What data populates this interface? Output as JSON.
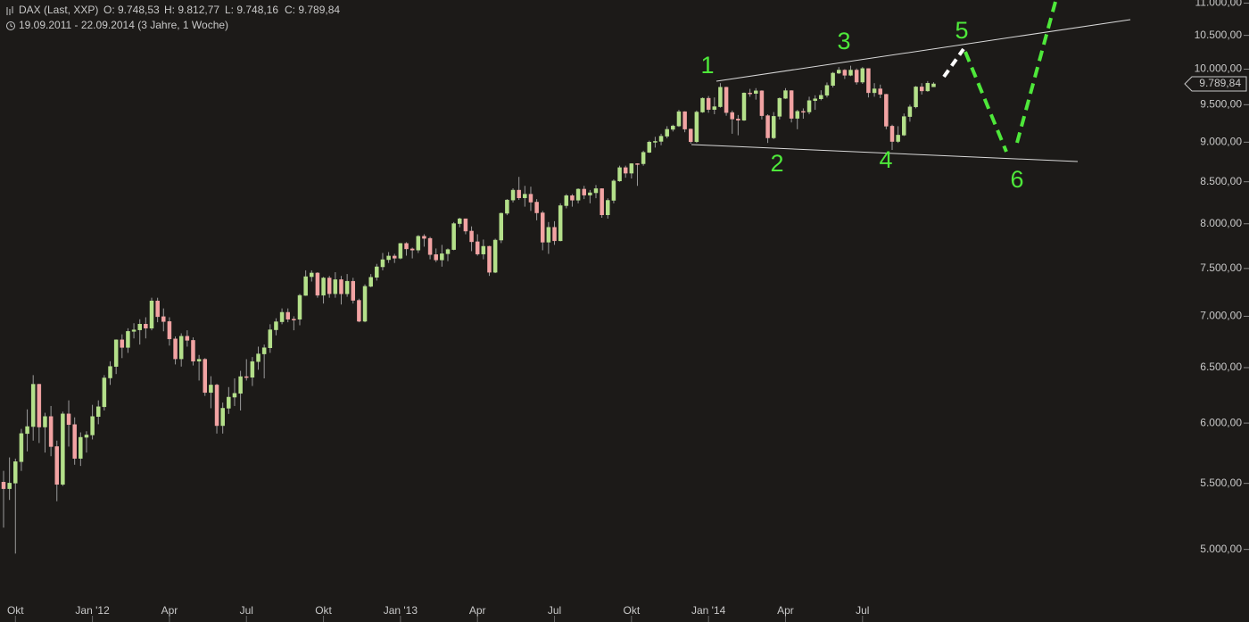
{
  "chart_data": {
    "type": "candlestick",
    "title": "DAX (Last, XXP)",
    "ohlc_labels": [
      "O: 9.748,53",
      "H: 9.812,77",
      "L: 9.748,16",
      "C: 9.789,84"
    ],
    "subtitle": "19.09.2011 - 22.09.2014 (3 Jahre, 1 Woche)",
    "log_scale": true,
    "up_color": "#b4e08a",
    "down_color": "#f2a3a3",
    "wick_color": "#9a9a9a",
    "ylim": [
      4650,
      11050
    ],
    "yticks": [
      {
        "value": 5000,
        "label": "5.000,00"
      },
      {
        "value": 5500,
        "label": "5.500,00"
      },
      {
        "value": 6000,
        "label": "6.000,00"
      },
      {
        "value": 6500,
        "label": "6.500,00"
      },
      {
        "value": 7000,
        "label": "7.000,00"
      },
      {
        "value": 7500,
        "label": "7.500,00"
      },
      {
        "value": 8000,
        "label": "8.000,00"
      },
      {
        "value": 8500,
        "label": "8.500,00"
      },
      {
        "value": 9000,
        "label": "9.000,00"
      },
      {
        "value": 9500,
        "label": "9.500,00"
      },
      {
        "value": 10000,
        "label": "10.000,00"
      },
      {
        "value": 10500,
        "label": "10.500,00"
      },
      {
        "value": 11000,
        "label": "11.000,00"
      }
    ],
    "last_price": {
      "value": 9789.84,
      "label": "9.789,84"
    },
    "annotations": [
      "1",
      "2",
      "3",
      "4",
      "5",
      "6"
    ],
    "categories": [
      null,
      null,
      "Okt",
      null,
      null,
      null,
      null,
      null,
      null,
      null,
      null,
      null,
      null,
      null,
      null,
      "Jan '12",
      null,
      null,
      null,
      null,
      null,
      null,
      null,
      null,
      null,
      null,
      null,
      null,
      "Apr",
      null,
      null,
      null,
      null,
      null,
      null,
      null,
      null,
      null,
      null,
      null,
      null,
      "Jul",
      null,
      null,
      null,
      null,
      null,
      null,
      null,
      null,
      null,
      null,
      null,
      null,
      "Okt",
      null,
      null,
      null,
      null,
      null,
      null,
      null,
      null,
      null,
      null,
      null,
      null,
      "Jan '13",
      null,
      null,
      null,
      null,
      null,
      null,
      null,
      null,
      null,
      null,
      null,
      null,
      "Apr",
      null,
      null,
      null,
      null,
      null,
      null,
      null,
      null,
      null,
      null,
      null,
      null,
      "Jul",
      null,
      null,
      null,
      null,
      null,
      null,
      null,
      null,
      null,
      null,
      null,
      null,
      "Okt",
      null,
      null,
      null,
      null,
      null,
      null,
      null,
      null,
      null,
      null,
      null,
      null,
      "Jan '14",
      null,
      null,
      null,
      null,
      null,
      null,
      null,
      null,
      null,
      null,
      null,
      null,
      "Apr",
      null,
      null,
      null,
      null,
      null,
      null,
      null,
      null,
      null,
      null,
      null,
      null,
      "Jul",
      null,
      null,
      null,
      null,
      null,
      null,
      null,
      null,
      null,
      null,
      null,
      null
    ],
    "open": [
      5510,
      5458,
      5502,
      5675,
      5910,
      5970,
      6346,
      5966,
      6057,
      5800,
      5492,
      6080,
      5987,
      5702,
      5878,
      5898,
      6057,
      6143,
      6404,
      6511,
      6766,
      6692,
      6849,
      6864,
      6921,
      6881,
      7157,
      6996,
      6947,
      6775,
      6583,
      6801,
      6761,
      6561,
      6579,
      6271,
      6339,
      5978,
      6130,
      6229,
      6263,
      6416,
      6410,
      6557,
      6630,
      6689,
      6865,
      6945,
      7040,
      6971,
      6970,
      7214,
      7412,
      7451,
      7216,
      7398,
      7232,
      7380,
      7231,
      7363,
      7163,
      6950,
      7309,
      7405,
      7518,
      7596,
      7636,
      7612,
      7776,
      7715,
      7702,
      7857,
      7833,
      7652,
      7593,
      7661,
      7708,
      8002,
      8058,
      7916,
      7795,
      7658,
      7744,
      7459,
      7814,
      8122,
      8279,
      8398,
      8305,
      8349,
      8254,
      8127,
      7790,
      7959,
      7806,
      8212,
      8331,
      8277,
      8410,
      8338,
      8366,
      8416,
      8104,
      8275,
      8510,
      8675,
      8606,
      8725,
      8724,
      8869,
      9001,
      9010,
      9078,
      9168,
      9213,
      9405,
      9172,
      9006,
      9400,
      9589,
      9435,
      9473,
      9743,
      9393,
      9306,
      9290,
      9662,
      9656,
      9692,
      9351,
      9056,
      9342,
      9588,
      9695,
      9315,
      9409,
      9401,
      9556,
      9581,
      9630,
      9768,
      9943,
      9987,
      9912,
      9987,
      9815,
      10009,
      9666,
      9720,
      9644,
      9210,
      9009,
      9092,
      9339,
      9470,
      9747,
      9691,
      9748.53
    ],
    "high": [
      5600,
      5710,
      5700,
      5950,
      6120,
      6430,
      6350,
      6090,
      6150,
      5850,
      6100,
      6200,
      6050,
      5920,
      5930,
      6160,
      6200,
      6430,
      6560,
      6770,
      6820,
      6880,
      6930,
      6970,
      6990,
      7190,
      7190,
      7080,
      6990,
      6800,
      6830,
      6860,
      6790,
      6620,
      6590,
      6420,
      6350,
      6180,
      6320,
      6400,
      6470,
      6580,
      6600,
      6700,
      6720,
      6920,
      6980,
      7080,
      7080,
      7000,
      7230,
      7480,
      7480,
      7460,
      7410,
      7420,
      7460,
      7420,
      7440,
      7400,
      7180,
      7330,
      7440,
      7550,
      7670,
      7680,
      7660,
      7780,
      7790,
      7730,
      7870,
      7880,
      7850,
      7720,
      7760,
      7720,
      8020,
      8070,
      8060,
      7970,
      7880,
      7820,
      7750,
      7830,
      8130,
      8290,
      8420,
      8560,
      8450,
      8440,
      8290,
      8150,
      8020,
      8030,
      8240,
      8350,
      8350,
      8420,
      8450,
      8400,
      8460,
      8420,
      8300,
      8530,
      8700,
      8700,
      8730,
      8730,
      8890,
      9020,
      9070,
      9110,
      9210,
      9230,
      9430,
      9410,
      9180,
      9420,
      9600,
      9620,
      9600,
      9800,
      9750,
      9420,
      9360,
      9670,
      9720,
      9730,
      9700,
      9370,
      9400,
      9600,
      9730,
      9700,
      9430,
      9450,
      9610,
      9630,
      9700,
      9810,
      9960,
      10030,
      10000,
      10050,
      10010,
      10030,
      10010,
      9800,
      9780,
      9650,
      9230,
      9210,
      9380,
      9500,
      9760,
      9800,
      9830,
      9812.77
    ],
    "low": [
      5160,
      5370,
      4970,
      5600,
      5760,
      5850,
      5830,
      5750,
      5720,
      5360,
      5480,
      5800,
      5650,
      5640,
      5750,
      5860,
      5990,
      6110,
      6340,
      6440,
      6590,
      6640,
      6780,
      6720,
      6780,
      6860,
      6940,
      6850,
      6710,
      6530,
      6510,
      6700,
      6520,
      6380,
      6240,
      6130,
      5910,
      5910,
      6080,
      6150,
      6110,
      6380,
      6330,
      6480,
      6400,
      6640,
      6810,
      6920,
      6940,
      6860,
      6910,
      7210,
      7360,
      7190,
      7130,
      7190,
      7190,
      7120,
      7200,
      7130,
      6940,
      6940,
      7300,
      7370,
      7480,
      7560,
      7560,
      7600,
      7640,
      7610,
      7670,
      7740,
      7600,
      7570,
      7520,
      7580,
      7700,
      7960,
      7880,
      7690,
      7640,
      7600,
      7420,
      7450,
      7780,
      8100,
      8250,
      8280,
      8200,
      8150,
      8040,
      7700,
      7660,
      7760,
      7800,
      8180,
      8200,
      8240,
      8290,
      8240,
      8300,
      8070,
      8060,
      8240,
      8500,
      8550,
      8540,
      8450,
      8700,
      8860,
      8930,
      8960,
      9050,
      9140,
      9200,
      9130,
      8980,
      8990,
      9390,
      9390,
      9370,
      9460,
      9350,
      9110,
      9090,
      9280,
      9610,
      9570,
      9300,
      8990,
      9040,
      9300,
      9580,
      9260,
      9170,
      9310,
      9370,
      9430,
      9560,
      9600,
      9740,
      9930,
      9860,
      9900,
      9780,
      9790,
      9600,
      9610,
      9590,
      9170,
      8900,
      8990,
      9080,
      9270,
      9450,
      9640,
      9680,
      9748.16
    ],
    "close": [
      5458,
      5502,
      5675,
      5910,
      5970,
      6346,
      5966,
      6057,
      5800,
      5492,
      6080,
      5987,
      5702,
      5878,
      5898,
      6057,
      6143,
      6404,
      6511,
      6766,
      6692,
      6849,
      6864,
      6921,
      6881,
      7157,
      6996,
      6947,
      6775,
      6583,
      6801,
      6761,
      6561,
      6579,
      6271,
      6339,
      5978,
      6130,
      6229,
      6263,
      6416,
      6410,
      6557,
      6630,
      6689,
      6865,
      6945,
      7040,
      6971,
      6970,
      7214,
      7412,
      7451,
      7216,
      7398,
      7232,
      7380,
      7231,
      7363,
      7163,
      6950,
      7309,
      7405,
      7518,
      7596,
      7636,
      7612,
      7776,
      7715,
      7702,
      7857,
      7833,
      7652,
      7593,
      7661,
      7708,
      8002,
      8058,
      7916,
      7795,
      7658,
      7744,
      7459,
      7814,
      8122,
      8279,
      8398,
      8305,
      8349,
      8254,
      8127,
      7790,
      7959,
      7806,
      8212,
      8331,
      8277,
      8410,
      8338,
      8366,
      8416,
      8104,
      8275,
      8510,
      8675,
      8606,
      8725,
      8724,
      8869,
      9001,
      9010,
      9078,
      9168,
      9213,
      9405,
      9172,
      9006,
      9400,
      9589,
      9435,
      9473,
      9743,
      9393,
      9306,
      9290,
      9662,
      9656,
      9692,
      9351,
      9056,
      9342,
      9588,
      9695,
      9315,
      9409,
      9401,
      9556,
      9581,
      9630,
      9768,
      9943,
      9987,
      9912,
      9987,
      9815,
      10009,
      9666,
      9720,
      9644,
      9210,
      9009,
      9092,
      9339,
      9470,
      9747,
      9691,
      9799,
      9789.84
    ]
  }
}
